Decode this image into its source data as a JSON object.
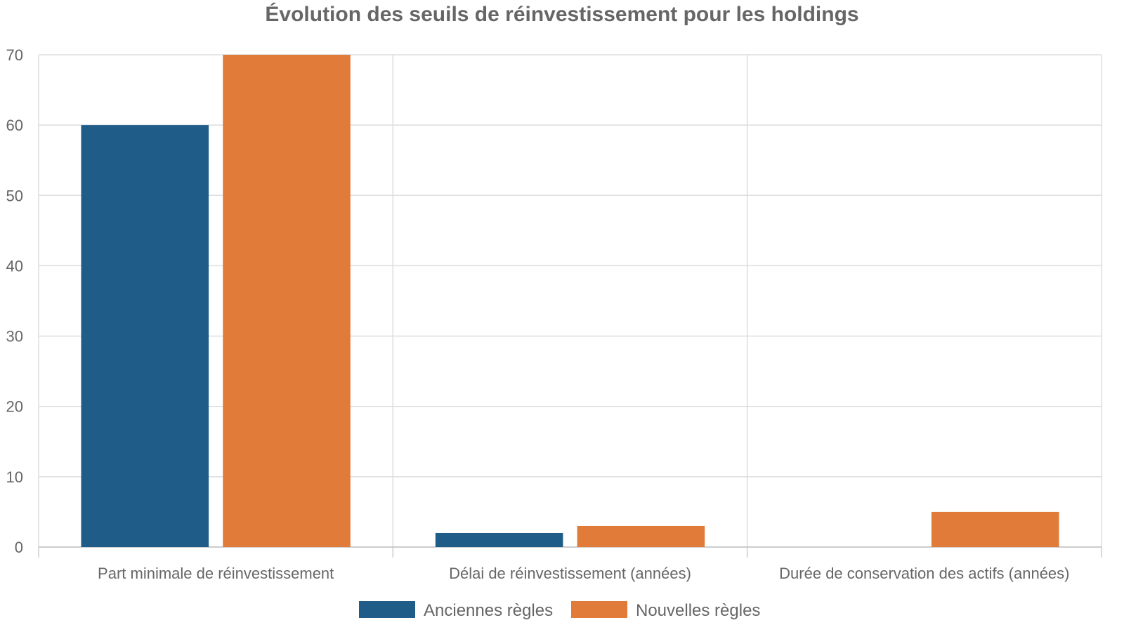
{
  "chart_data": {
    "type": "bar",
    "title": "Évolution des seuils de réinvestissement pour les holdings",
    "xlabel": "",
    "ylabel": "",
    "categories": [
      "Part minimale de réinvestissement",
      "Délai de réinvestissement (années)",
      "Durée de conservation des actifs (années)"
    ],
    "series": [
      {
        "name": "Anciennes règles",
        "values": [
          60,
          2,
          0
        ],
        "color": "#1f5c87"
      },
      {
        "name": "Nouvelles règles",
        "values": [
          70,
          3,
          5
        ],
        "color": "#e07b3a"
      }
    ],
    "ylim": [
      0,
      70
    ],
    "yticks": [
      0,
      10,
      20,
      30,
      40,
      50,
      60,
      70
    ],
    "grid": true,
    "legend_position": "bottom-center"
  }
}
